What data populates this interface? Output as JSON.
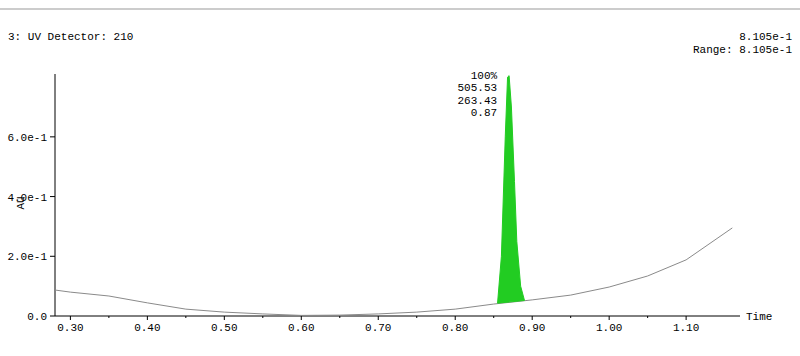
{
  "chart_data": {
    "type": "chromatogram",
    "title": "3: UV Detector: 210",
    "annotations": {
      "header": [
        "8.105e-1",
        "Range: 8.105e-1"
      ],
      "peak": [
        "100%",
        "505.53",
        "263.43",
        "0.87"
      ]
    },
    "x_label": "Time",
    "y_label": "AU",
    "xlim": [
      0.28,
      1.17
    ],
    "ylim": [
      0,
      0.8105
    ],
    "xticks": [
      {
        "value": 0.3,
        "label": "0.30"
      },
      {
        "value": 0.4,
        "label": "0.40"
      },
      {
        "value": 0.5,
        "label": "0.50"
      },
      {
        "value": 0.6,
        "label": "0.60"
      },
      {
        "value": 0.7,
        "label": "0.70"
      },
      {
        "value": 0.8,
        "label": "0.80"
      },
      {
        "value": 0.9,
        "label": "0.90"
      },
      {
        "value": 1.0,
        "label": "1.00"
      },
      {
        "value": 1.1,
        "label": "1.10"
      }
    ],
    "yticks": [
      {
        "value": 0,
        "label": "0.0"
      },
      {
        "value": 0.2,
        "label": "2.0e-1"
      },
      {
        "value": 0.4,
        "label": "4.0e-1"
      },
      {
        "value": 0.6,
        "label": "6.0e-1"
      }
    ],
    "grid": false,
    "series": [
      {
        "type": "line",
        "color": "#8a8a8a",
        "x": [
          0.28,
          0.3,
          0.35,
          0.4,
          0.45,
          0.5,
          0.55,
          0.6,
          0.65,
          0.7,
          0.75,
          0.8,
          0.85,
          0.9,
          0.95,
          1.0,
          1.05,
          1.1,
          1.16
        ],
        "values": [
          0.087,
          0.08,
          0.067,
          0.044,
          0.023,
          0.013,
          0.007,
          0.002,
          0.003,
          0.007,
          0.013,
          0.023,
          0.04,
          0.054,
          0.07,
          0.097,
          0.134,
          0.188,
          0.295
        ]
      },
      {
        "type": "area",
        "color": "#22cc22",
        "x": [
          0.855,
          0.86,
          0.865,
          0.868,
          0.87,
          0.873,
          0.877,
          0.88,
          0.885,
          0.89
        ],
        "values": [
          0.043,
          0.2,
          0.6,
          0.8,
          0.805,
          0.7,
          0.45,
          0.25,
          0.1,
          0.052
        ]
      }
    ]
  }
}
